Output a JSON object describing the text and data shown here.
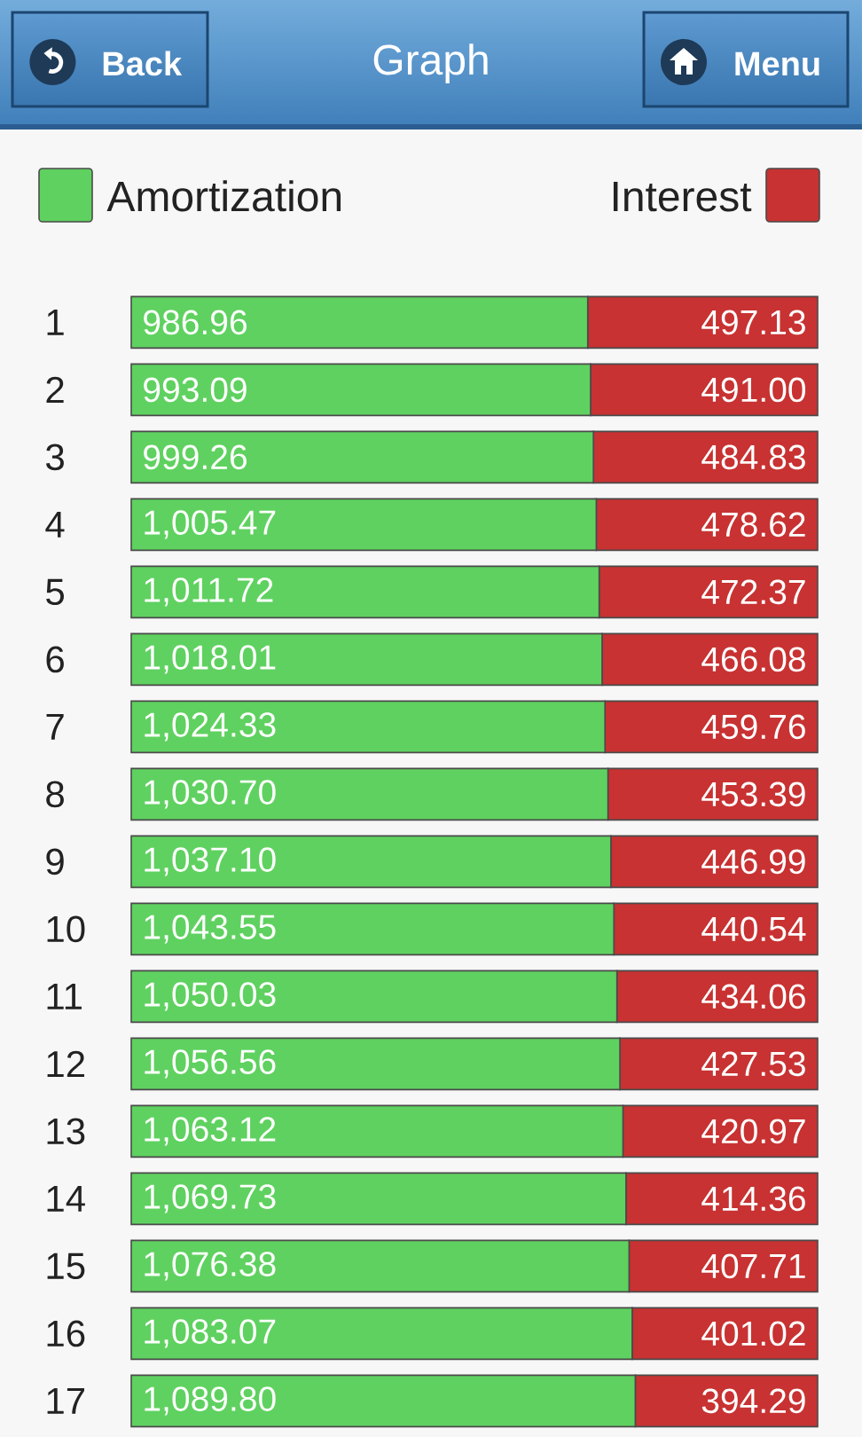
{
  "chart_data": {
    "type": "bar",
    "orientation": "horizontal",
    "stacked": true,
    "title": "Graph",
    "annotations": [
      "Back",
      "Menu"
    ],
    "categories": [
      "1",
      "2",
      "3",
      "4",
      "5",
      "6",
      "7",
      "8",
      "9",
      "10",
      "11",
      "12",
      "13",
      "14",
      "15",
      "16",
      "17"
    ],
    "series": [
      {
        "name": "Amortization",
        "color": "#5fd160",
        "values": [
          986.96,
          993.09,
          999.26,
          1005.47,
          1011.72,
          1018.01,
          1024.33,
          1030.7,
          1037.1,
          1043.55,
          1050.03,
          1056.56,
          1063.12,
          1069.73,
          1076.38,
          1083.07,
          1089.8
        ],
        "value_labels": [
          "986.96",
          "993.09",
          "999.26",
          "1,005.47",
          "1,011.72",
          "1,018.01",
          "1,024.33",
          "1,030.70",
          "1,037.10",
          "1,043.55",
          "1,050.03",
          "1,056.56",
          "1,063.12",
          "1,069.73",
          "1,076.38",
          "1,083.07",
          "1,089.80"
        ]
      },
      {
        "name": "Interest",
        "color": "#c83232",
        "values": [
          497.13,
          491.0,
          484.83,
          478.62,
          472.37,
          466.08,
          459.76,
          453.39,
          446.99,
          440.54,
          434.06,
          427.53,
          420.97,
          414.36,
          407.71,
          401.02,
          394.29
        ],
        "value_labels": [
          "497.13",
          "491.00",
          "484.83",
          "478.62",
          "472.37",
          "466.08",
          "459.76",
          "453.39",
          "446.99",
          "440.54",
          "434.06",
          "427.53",
          "420.97",
          "414.36",
          "407.71",
          "401.02",
          "394.29"
        ]
      }
    ],
    "legend": "top"
  }
}
